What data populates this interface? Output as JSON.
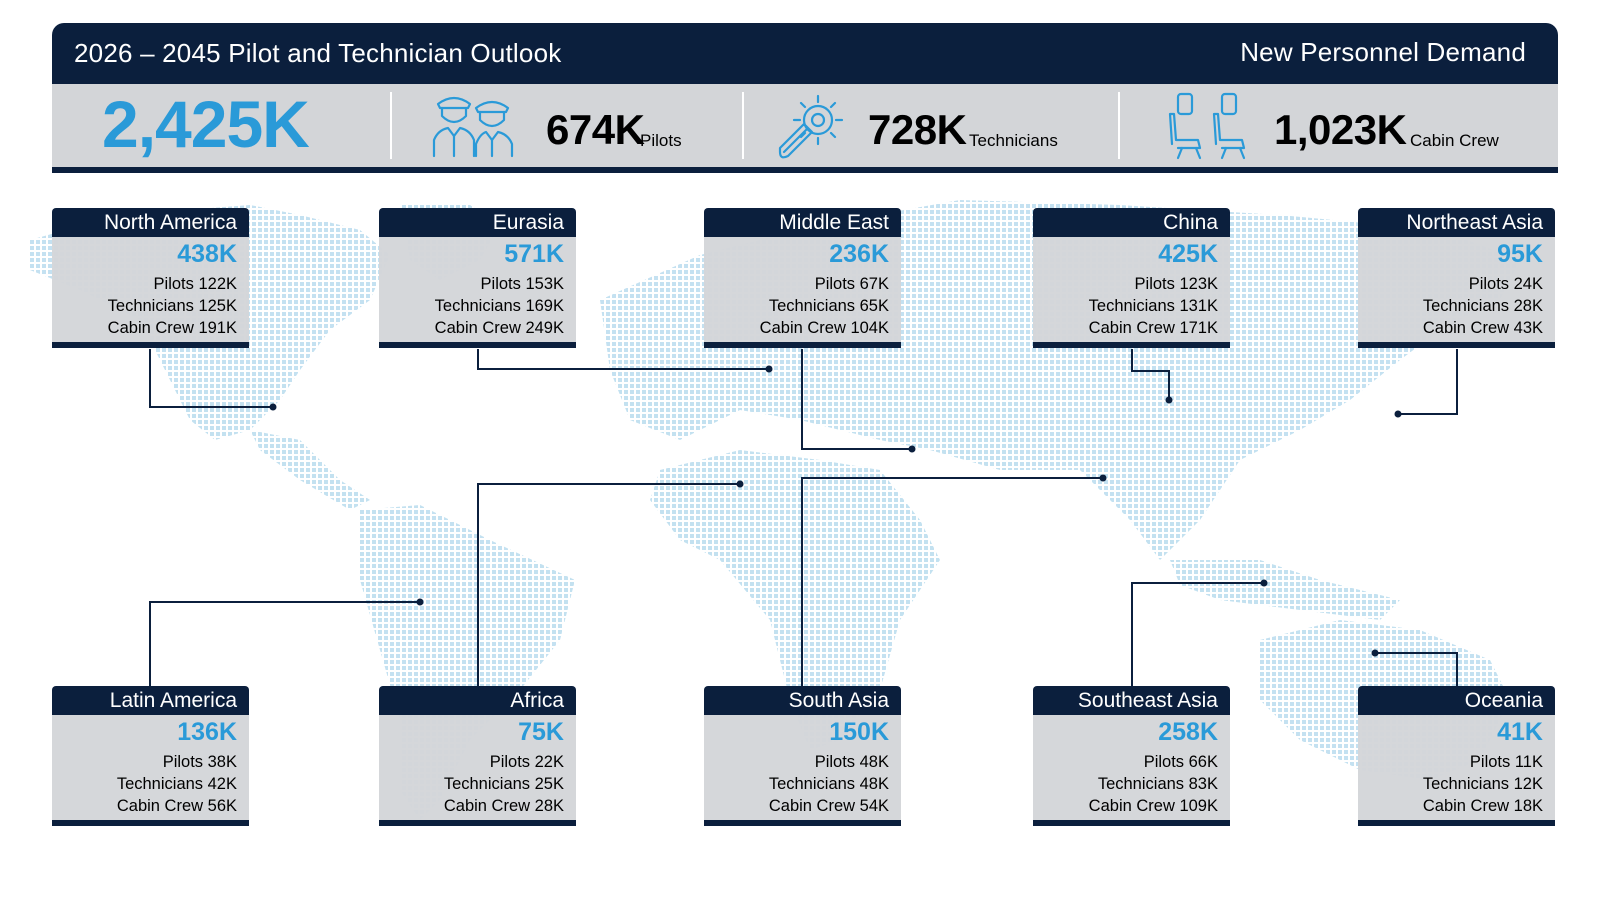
{
  "header": {
    "title": "2026 – 2045 Pilot and Technician Outlook",
    "subtitle": "New Personnel Demand"
  },
  "totals": {
    "overall": "2,425K",
    "pilots": {
      "value": "674K",
      "label": "Pilots",
      "icon": "pilots-icon"
    },
    "technicians": {
      "value": "728K",
      "label": "Technicians",
      "icon": "gear-wrench-icon"
    },
    "cabin_crew": {
      "value": "1,023K",
      "label": "Cabin Crew",
      "icon": "airplane-seats-icon"
    }
  },
  "colors": {
    "navy": "#0b1f3d",
    "accent_blue": "#2a9ad8",
    "panel_gray": "#d3d5d8",
    "map_dots": "#b9dcee"
  },
  "regions": [
    {
      "key": "north_america",
      "name": "North America",
      "total": "438K",
      "pilots": "Pilots 122K",
      "technicians": "Technicians 125K",
      "cabin_crew": "Cabin Crew 191K"
    },
    {
      "key": "eurasia",
      "name": "Eurasia",
      "total": "571K",
      "pilots": "Pilots 153K",
      "technicians": "Technicians 169K",
      "cabin_crew": "Cabin Crew  249K"
    },
    {
      "key": "middle_east",
      "name": "Middle East",
      "total": "236K",
      "pilots": "Pilots 67K",
      "technicians": "Technicians 65K",
      "cabin_crew": "Cabin Crew 104K"
    },
    {
      "key": "china",
      "name": "China",
      "total": "425K",
      "pilots": "Pilots 123K",
      "technicians": "Technicians 131K",
      "cabin_crew": "Cabin Crew 171K"
    },
    {
      "key": "northeast_asia",
      "name": "Northeast Asia",
      "total": "95K",
      "pilots": "Pilots 24K",
      "technicians": "Technicians 28K",
      "cabin_crew": "Cabin Crew 43K"
    },
    {
      "key": "latin_america",
      "name": "Latin America",
      "total": "136K",
      "pilots": "Pilots 38K",
      "technicians": "Technicians 42K",
      "cabin_crew": "Cabin Crew 56K"
    },
    {
      "key": "africa",
      "name": "Africa",
      "total": "75K",
      "pilots": "Pilots 22K",
      "technicians": "Technicians 25K",
      "cabin_crew": "Cabin Crew 28K"
    },
    {
      "key": "south_asia",
      "name": "South Asia",
      "total": "150K",
      "pilots": "Pilots 48K",
      "technicians": "Technicians 48K",
      "cabin_crew": "Cabin Crew 54K"
    },
    {
      "key": "southeast_asia",
      "name": "Southeast Asia",
      "total": "258K",
      "pilots": "Pilots 66K",
      "technicians": "Technicians 83K",
      "cabin_crew": "Cabin Crew 109K"
    },
    {
      "key": "oceania",
      "name": "Oceania",
      "total": "41K",
      "pilots": "Pilots 11K",
      "technicians": "Technicians 12K",
      "cabin_crew": "Cabin Crew 18K"
    }
  ]
}
